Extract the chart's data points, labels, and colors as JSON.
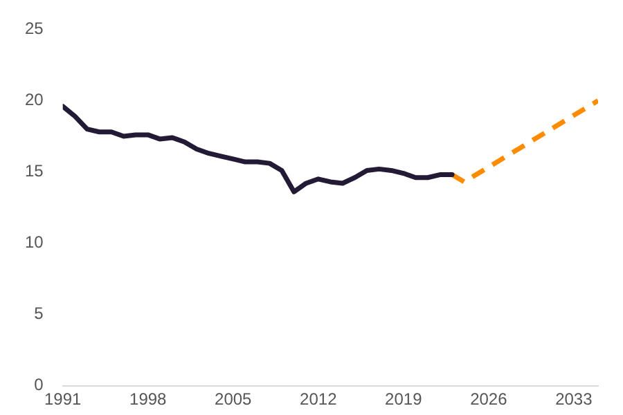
{
  "chart_data": {
    "type": "line",
    "xlim": [
      1991,
      2035
    ],
    "xticks": [
      1991,
      1998,
      2005,
      2012,
      2019,
      2026,
      2033
    ],
    "ylim": [
      0,
      25
    ],
    "yticks": [
      0,
      5,
      10,
      15,
      20,
      25
    ],
    "grid": false,
    "legend": false,
    "series": [
      {
        "color": "#231a35",
        "line_style": "solid",
        "x": [
          1991,
          1992,
          1993,
          1994,
          1995,
          1996,
          1997,
          1998,
          1999,
          2000,
          2001,
          2002,
          2003,
          2004,
          2005,
          2006,
          2007,
          2008,
          2009,
          2010,
          2011,
          2012,
          2013,
          2014,
          2015,
          2016,
          2017,
          2018,
          2019,
          2020,
          2021,
          2022,
          2023
        ],
        "values": [
          19.6,
          18.9,
          18.0,
          17.8,
          17.8,
          17.5,
          17.6,
          17.6,
          17.3,
          17.4,
          17.1,
          16.6,
          16.3,
          16.1,
          15.9,
          15.7,
          15.7,
          15.6,
          15.1,
          13.6,
          14.2,
          14.5,
          14.3,
          14.2,
          14.6,
          15.1,
          15.2,
          15.1,
          14.9,
          14.6,
          14.6,
          14.8,
          14.8
        ]
      },
      {
        "color": "#ff8c00",
        "line_style": "dashed",
        "x": [
          2023,
          2024,
          2035
        ],
        "values": [
          14.8,
          14.3,
          20
        ]
      }
    ]
  }
}
